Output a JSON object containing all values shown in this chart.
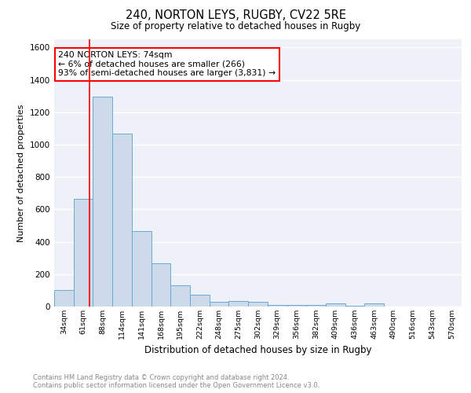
{
  "title1": "240, NORTON LEYS, RUGBY, CV22 5RE",
  "title2": "Size of property relative to detached houses in Rugby",
  "xlabel": "Distribution of detached houses by size in Rugby",
  "ylabel": "Number of detached properties",
  "bin_labels": [
    "34sqm",
    "61sqm",
    "88sqm",
    "114sqm",
    "141sqm",
    "168sqm",
    "195sqm",
    "222sqm",
    "248sqm",
    "275sqm",
    "302sqm",
    "329sqm",
    "356sqm",
    "382sqm",
    "409sqm",
    "436sqm",
    "463sqm",
    "490sqm",
    "516sqm",
    "543sqm",
    "570sqm"
  ],
  "bar_heights": [
    100,
    665,
    1295,
    1070,
    465,
    265,
    130,
    75,
    28,
    35,
    28,
    10,
    10,
    10,
    20,
    5,
    20,
    0,
    0,
    0,
    0
  ],
  "bar_color": "#ccdaea",
  "bar_edge_color": "#6aaad4",
  "grid_color": "#d0d8e8",
  "annotation_text": "240 NORTON LEYS: 74sqm\n← 6% of detached houses are smaller (266)\n93% of semi-detached houses are larger (3,831) →",
  "ylim": [
    0,
    1650
  ],
  "yticks": [
    0,
    200,
    400,
    600,
    800,
    1000,
    1200,
    1400,
    1600
  ],
  "footer": "Contains HM Land Registry data © Crown copyright and database right 2024.\nContains public sector information licensed under the Open Government Licence v3.0.",
  "red_line_x": 1.82
}
